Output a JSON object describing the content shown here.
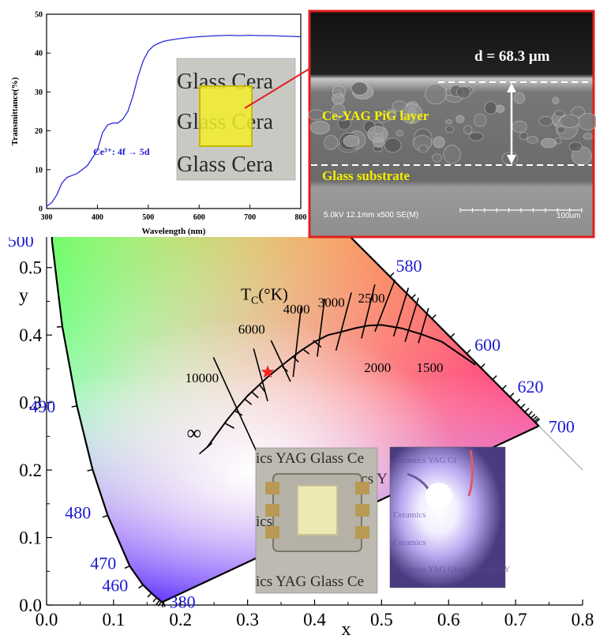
{
  "chart_data": [
    {
      "type": "line",
      "ylabel": "Transmittance(%)",
      "xlabel": "Wavelength (nm)",
      "xlim": [
        300,
        800
      ],
      "ylim": [
        0,
        50
      ],
      "xticks": [
        300,
        400,
        500,
        600,
        700,
        800
      ],
      "yticks": [
        0,
        10,
        20,
        30,
        40,
        50
      ],
      "annotation": "Ce³⁺: 4f → 5d",
      "series": [
        {
          "x": [
            300,
            310,
            320,
            330,
            340,
            350,
            360,
            380,
            400,
            410,
            420,
            430,
            440,
            450,
            460,
            470,
            480,
            490,
            500,
            510,
            520,
            530,
            540,
            560,
            580,
            600,
            620,
            640,
            660,
            680,
            700,
            720,
            740,
            760,
            780,
            800
          ],
          "y": [
            0.5,
            1.5,
            3.5,
            6.5,
            8,
            8.5,
            9,
            11,
            15,
            19.5,
            21.5,
            22,
            22,
            23,
            25,
            29,
            34,
            38,
            40.5,
            41.8,
            42.5,
            43,
            43.3,
            43.7,
            44,
            44.2,
            44.4,
            44.5,
            44.6,
            44.5,
            44.6,
            44.5,
            44.5,
            44.4,
            44.3,
            44.2
          ]
        }
      ]
    },
    {
      "type": "scatter",
      "xlabel": "x",
      "ylabel": "y",
      "xlim": [
        0.0,
        0.8
      ],
      "ylim": [
        0.0,
        0.55
      ],
      "xticks": [
        "0.0",
        "0.1",
        "0.2",
        "0.3",
        "0.4",
        "0.5",
        "0.6",
        "0.7",
        "0.8"
      ],
      "yticks": [
        "0.0",
        "0.1",
        "0.2",
        "0.3",
        "0.4",
        "0.5"
      ],
      "locus_wavelength_labels": [
        {
          "label": "380",
          "x": 0.174,
          "y": 0.005
        },
        {
          "label": "460",
          "x": 0.144,
          "y": 0.03
        },
        {
          "label": "470",
          "x": 0.124,
          "y": 0.058
        },
        {
          "label": "480",
          "x": 0.091,
          "y": 0.133
        },
        {
          "label": "490",
          "x": 0.045,
          "y": 0.295
        },
        {
          "label": "500",
          "x": 0.008,
          "y": 0.538
        },
        {
          "label": "580",
          "x": 0.512,
          "y": 0.487
        },
        {
          "label": "600",
          "x": 0.627,
          "y": 0.372
        },
        {
          "label": "620",
          "x": 0.691,
          "y": 0.308
        },
        {
          "label": "700",
          "x": 0.735,
          "y": 0.265
        }
      ],
      "planckian_title": "T_C(°K)",
      "cct_labels": [
        "∞",
        "10000",
        "6000",
        "4000",
        "3000",
        "2500",
        "2000",
        "1500"
      ],
      "measured_point": {
        "x": 0.33,
        "y": 0.345
      }
    }
  ],
  "inset_photo": {
    "text_lines": [
      "Glass Cera",
      "Glass Cera",
      "Glass Cera"
    ]
  },
  "sem": {
    "thickness_label": "d = 68.3 μm",
    "layer_label": "Ce-YAG PiG layer",
    "substrate_label": "Glass substrate",
    "meta": "5.0kV 12.1mm x500 SE(M)",
    "scale_label": "100um"
  },
  "led_photo": {
    "text_lines": [
      "ics YAG Glass Ce",
      "ics Y",
      "ics",
      "ics YAG Glass Ce"
    ]
  },
  "lit_photo": {
    "text_lines": [
      "Ceramics YAG Gl",
      "Ceramics",
      "Ceramics",
      "Ceramics YAG Glass Ceramics Y"
    ]
  },
  "colors": {
    "wavelength_label": "#1a1ad0",
    "axis": "#000000",
    "curve": "#2a2ad8",
    "star": "#ff2020",
    "sem_frame": "#e02020"
  }
}
